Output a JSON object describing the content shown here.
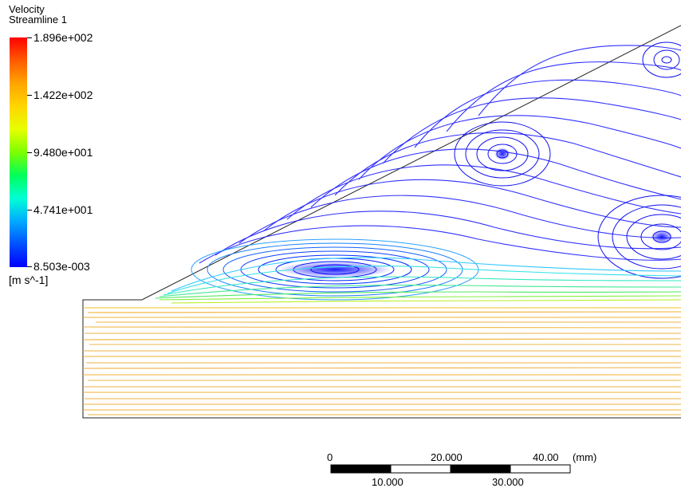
{
  "legend": {
    "title": "Velocity",
    "subtitle": "Streamline 1",
    "ticks": [
      "1.896e+002",
      "1.422e+002",
      "9.480e+001",
      "4.741e+001",
      "8.503e-003"
    ],
    "unit": "[m s^-1]",
    "colors": [
      "#ff0000",
      "#ffa500",
      "#e6ff00",
      "#00ff5a",
      "#00ffd5",
      "#00aaff",
      "#0000ff"
    ]
  },
  "scale_bar": {
    "top_labels": [
      "0",
      "20.000",
      "40.00"
    ],
    "bottom_labels": [
      "10.000",
      "30.000"
    ],
    "unit": "(mm)"
  }
}
